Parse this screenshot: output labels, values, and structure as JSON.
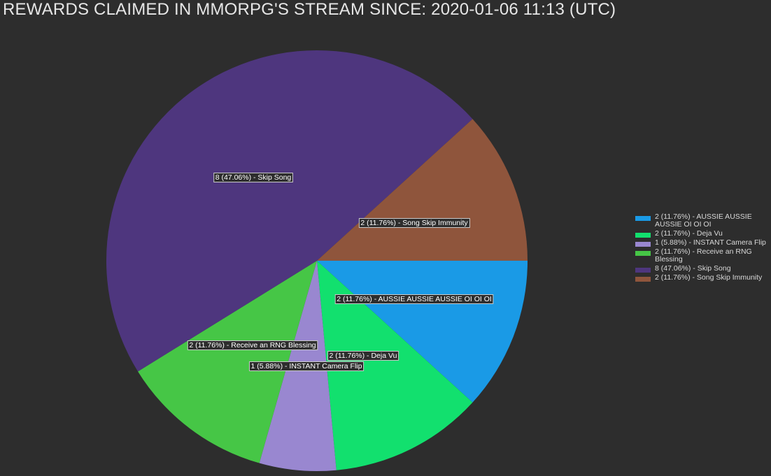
{
  "chart_data": {
    "type": "pie",
    "title": "REWARDS CLAIMED IN MMORPG'S STREAM SINCE: 2020-01-06 11:13 (UTC)",
    "legend_position": "right",
    "slices": [
      {
        "name": "AUSSIE AUSSIE AUSSIE OI OI OI",
        "value": 2,
        "percent": 11.76,
        "label": "2 (11.76%) - AUSSIE AUSSIE AUSSIE OI OI OI",
        "color": "#1a9ae6"
      },
      {
        "name": "Deja Vu",
        "value": 2,
        "percent": 11.76,
        "label": "2 (11.76%) - Deja Vu",
        "color": "#12e06e"
      },
      {
        "name": "INSTANT Camera Flip",
        "value": 1,
        "percent": 5.88,
        "label": "1 (5.88%) - INSTANT Camera Flip",
        "color": "#9987d0"
      },
      {
        "name": "Receive an RNG Blessing",
        "value": 2,
        "percent": 11.76,
        "label": "2 (11.76%) - Receive an RNG Blessing",
        "color": "#46c646"
      },
      {
        "name": "Skip Song",
        "value": 8,
        "percent": 47.06,
        "label": "8 (47.06%) - Skip Song",
        "color": "#4e367e"
      },
      {
        "name": "Song Skip Immunity",
        "value": 2,
        "percent": 11.76,
        "label": "2 (11.76%) - Song Skip Immunity",
        "color": "#8f553c"
      }
    ]
  }
}
